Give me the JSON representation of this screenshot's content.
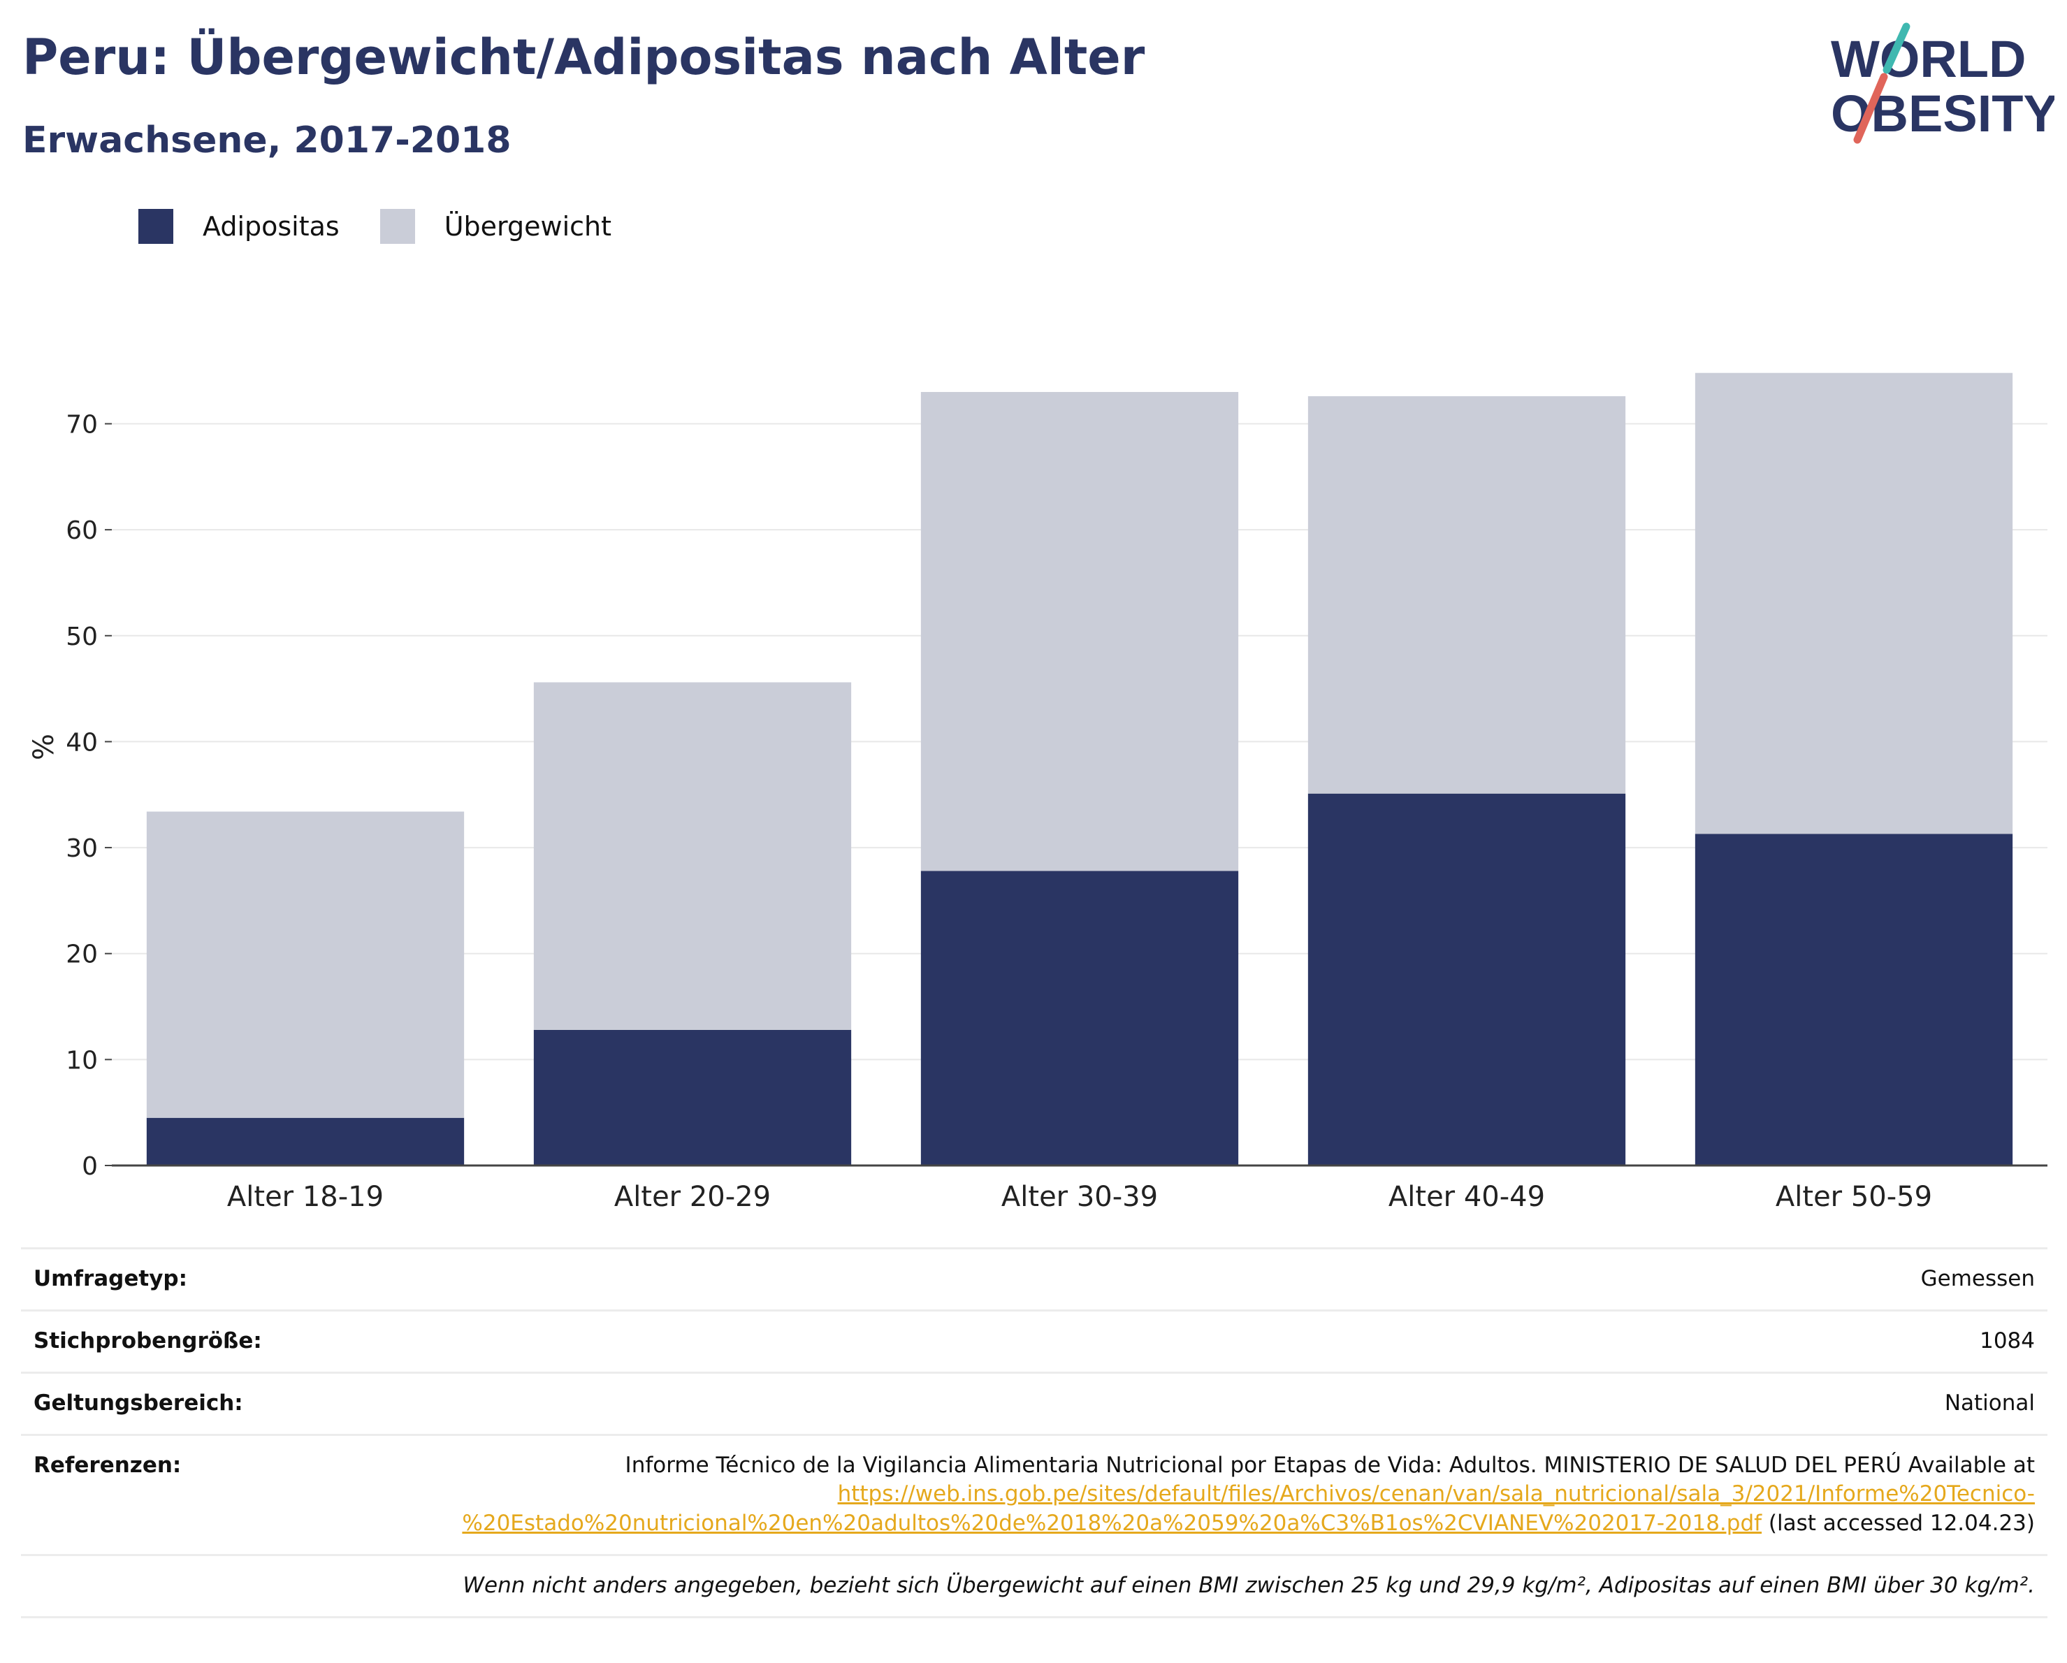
{
  "header": {
    "title": "Peru: Übergewicht/Adipositas nach Alter",
    "subtitle": "Erwachsene, 2017-2018"
  },
  "logo": {
    "line1": "WORLD",
    "line2": "OBESITY"
  },
  "legend": [
    {
      "label": "Adipositas",
      "color": "#2a3563"
    },
    {
      "label": "Übergewicht",
      "color": "#cacdd8"
    }
  ],
  "chart_data": {
    "type": "bar",
    "stacked": true,
    "categories": [
      "Alter 18-19",
      "Alter 20-29",
      "Alter 30-39",
      "Alter 40-49",
      "Alter 50-59"
    ],
    "series": [
      {
        "name": "Adipositas",
        "values": [
          4.5,
          12.8,
          27.8,
          35.1,
          31.3
        ],
        "color": "#2a3563"
      },
      {
        "name": "Übergewicht",
        "values": [
          28.9,
          32.8,
          45.2,
          37.5,
          43.5
        ],
        "color": "#cacdd8"
      }
    ],
    "ylabel": "%",
    "ylim": [
      0,
      79
    ],
    "yticks": [
      0,
      10,
      20,
      30,
      40,
      50,
      60,
      70
    ],
    "grid": true,
    "legend_position": "top-left"
  },
  "info": {
    "survey_type": {
      "label": "Umfragetyp:",
      "value": "Gemessen"
    },
    "sample_size": {
      "label": "Stichprobengröße:",
      "value": "1084"
    },
    "scope": {
      "label": "Geltungsbereich:",
      "value": "National"
    },
    "references": {
      "label": "Referenzen:",
      "text": "Informe Técnico de la Vigilancia Alimentaria Nutricional por Etapas de Vida: Adultos. MINISTERIO DE SALUD DEL PERÚ Available at",
      "url_line1": "https://web.ins.gob.pe/sites/default/files/Archivos/cenan/van/sala_nutricional/sala_3/2021/Informe%20Tecnico-",
      "url_line2": "%20Estado%20nutricional%20en%20adultos%20de%2018%20a%2059%20a%C3%B1os%2CVIANEV%202017-2018.pdf",
      "suffix": "(last accessed 12.04.23)"
    },
    "footnote": "Wenn nicht anders angegeben, bezieht sich Übergewicht auf einen BMI zwischen 25 kg und 29,9 kg/m², Adipositas auf einen BMI über 30 kg/m²."
  }
}
